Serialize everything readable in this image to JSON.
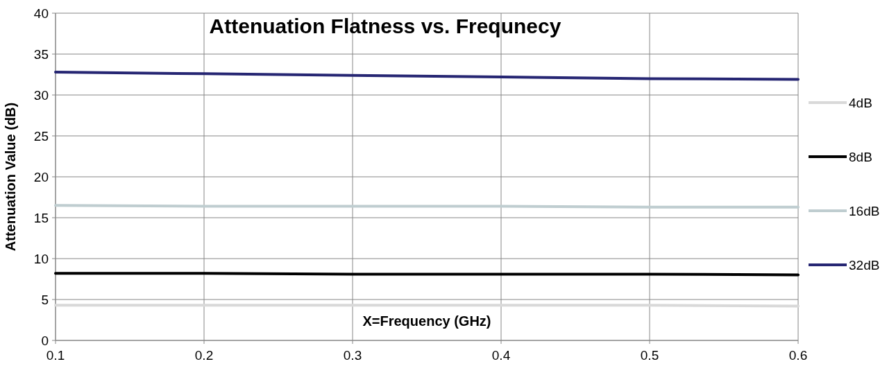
{
  "chart_data": {
    "type": "line",
    "title": "Attenuation Flatness vs. Frequnecy",
    "xlabel": "X=Frequency (GHz)",
    "ylabel": "Attenuation Value (dB)",
    "x": [
      0.1,
      0.2,
      0.3,
      0.4,
      0.5,
      0.6
    ],
    "series": [
      {
        "name": "4dB",
        "color": "#d9d9d9",
        "values": [
          4.3,
          4.3,
          4.3,
          4.3,
          4.3,
          4.2
        ]
      },
      {
        "name": "8dB",
        "color": "#000000",
        "values": [
          8.2,
          8.2,
          8.1,
          8.1,
          8.1,
          8.0
        ]
      },
      {
        "name": "16dB",
        "color": "#bfcdd0",
        "values": [
          16.5,
          16.4,
          16.4,
          16.4,
          16.3,
          16.3
        ]
      },
      {
        "name": "32dB",
        "color": "#262673",
        "values": [
          32.8,
          32.6,
          32.4,
          32.2,
          32.0,
          31.9
        ]
      }
    ],
    "xlim": [
      0.1,
      0.6
    ],
    "xticks": [
      0.1,
      0.2,
      0.3,
      0.4,
      0.5,
      0.6
    ],
    "ylim": [
      0,
      40
    ],
    "yticks": [
      0,
      5,
      10,
      15,
      20,
      25,
      30,
      35,
      40
    ],
    "grid": true,
    "legend": "right",
    "marker": "none",
    "line_style": "solid"
  }
}
